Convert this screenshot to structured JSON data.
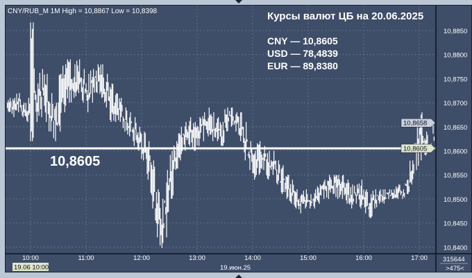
{
  "header": "CNY/RUB_M 1M High = 10,8867 Low = 10,8398",
  "overlay": {
    "title": "Курсы валют ЦБ на 20.06.2025",
    "rates": [
      "CNY — 10,8605",
      "USD — 78,4839",
      "EUR — 89,8380"
    ],
    "big_price": "10,8605"
  },
  "colors": {
    "background": "#3e4d68",
    "bars": "#ffffff",
    "grid": "#6a7a96",
    "price_tag": "#dfe6cc",
    "last_tag": "#c9d1dc"
  },
  "axis_footer": {
    "volume": "315644",
    "zoom": ">475<",
    "cursor_time": "19.06 10:00",
    "date": "19.июн.25"
  },
  "chart_data": {
    "type": "bar",
    "subtype": "minute high-low bars (aggregated to 5 min)",
    "symbol": "CNY/RUB_M",
    "timeframe": "1M",
    "high": 10.8867,
    "low": 10.8398,
    "ylim": [
      10.8385,
      10.8905
    ],
    "yticks": [
      "10,8400",
      "10,8450",
      "10,8500",
      "10,8550",
      "10,8600",
      "10,8650",
      "10,8700",
      "10,8750",
      "10,8800",
      "10,8850"
    ],
    "xticks": [
      "10:00",
      "11:00",
      "12:00",
      "13:00",
      "14:00",
      "15:00",
      "16:00",
      "17:00"
    ],
    "horizontal_line": 10.8605,
    "price_tags": [
      {
        "label": "10,8658",
        "value": 10.8658
      },
      {
        "label": "10,8605",
        "value": 10.8605
      }
    ],
    "grid": true,
    "start_time": "09:35",
    "bars_low_high": [
      [
        10.868,
        10.871
      ],
      [
        10.867,
        10.871
      ],
      [
        10.868,
        10.872
      ],
      [
        10.867,
        10.87
      ],
      [
        10.866,
        10.871
      ],
      [
        10.862,
        10.8867
      ],
      [
        10.866,
        10.874
      ],
      [
        10.867,
        10.877
      ],
      [
        10.866,
        10.876
      ],
      [
        10.864,
        10.872
      ],
      [
        10.862,
        10.87
      ],
      [
        10.864,
        10.876
      ],
      [
        10.868,
        10.878
      ],
      [
        10.87,
        10.879
      ],
      [
        10.871,
        10.878
      ],
      [
        10.872,
        10.879
      ],
      [
        10.87,
        10.877
      ],
      [
        10.868,
        10.876
      ],
      [
        10.87,
        10.877
      ],
      [
        10.872,
        10.878
      ],
      [
        10.871,
        10.878
      ],
      [
        10.869,
        10.876
      ],
      [
        10.866,
        10.874
      ],
      [
        10.866,
        10.872
      ],
      [
        10.866,
        10.871
      ],
      [
        10.864,
        10.869
      ],
      [
        10.863,
        10.868
      ],
      [
        10.861,
        10.867
      ],
      [
        10.86,
        10.865
      ],
      [
        10.858,
        10.864
      ],
      [
        10.854,
        10.862
      ],
      [
        10.848,
        10.858
      ],
      [
        10.842,
        10.852
      ],
      [
        10.8398,
        10.85
      ],
      [
        10.842,
        10.856
      ],
      [
        10.85,
        10.86
      ],
      [
        10.856,
        10.862
      ],
      [
        10.858,
        10.865
      ],
      [
        10.86,
        10.866
      ],
      [
        10.861,
        10.867
      ],
      [
        10.86,
        10.866
      ],
      [
        10.861,
        10.867
      ],
      [
        10.862,
        10.868
      ],
      [
        10.863,
        10.869
      ],
      [
        10.862,
        10.868
      ],
      [
        10.862,
        10.867
      ],
      [
        10.861,
        10.866
      ],
      [
        10.864,
        10.869
      ],
      [
        10.865,
        10.869
      ],
      [
        10.864,
        10.868
      ],
      [
        10.862,
        10.868
      ],
      [
        10.858,
        10.866
      ],
      [
        10.856,
        10.862
      ],
      [
        10.854,
        10.86
      ],
      [
        10.855,
        10.862
      ],
      [
        10.856,
        10.861
      ],
      [
        10.854,
        10.86
      ],
      [
        10.855,
        10.86
      ],
      [
        10.853,
        10.858
      ],
      [
        10.851,
        10.857
      ],
      [
        10.85,
        10.855
      ],
      [
        10.849,
        10.854
      ],
      [
        10.848,
        10.852
      ],
      [
        10.847,
        10.851
      ],
      [
        10.848,
        10.852
      ],
      [
        10.848,
        10.851
      ],
      [
        10.848,
        10.852
      ],
      [
        10.849,
        10.853
      ],
      [
        10.85,
        10.854
      ],
      [
        10.85,
        10.855
      ],
      [
        10.851,
        10.855
      ],
      [
        10.85,
        10.855
      ],
      [
        10.85,
        10.855
      ],
      [
        10.849,
        10.854
      ],
      [
        10.848,
        10.853
      ],
      [
        10.849,
        10.853
      ],
      [
        10.848,
        10.854
      ],
      [
        10.847,
        10.852
      ],
      [
        10.846,
        10.851
      ],
      [
        10.848,
        10.852
      ],
      [
        10.849,
        10.852
      ],
      [
        10.849,
        10.852
      ],
      [
        10.85,
        10.852
      ],
      [
        10.85,
        10.852
      ],
      [
        10.85,
        10.853
      ],
      [
        10.85,
        10.852
      ],
      [
        10.851,
        10.854
      ],
      [
        10.853,
        10.858
      ],
      [
        10.856,
        10.866
      ],
      [
        10.858,
        10.868
      ],
      [
        10.859,
        10.864
      ],
      [
        10.86,
        10.8615
      ],
      [
        10.8605,
        10.8658
      ]
    ]
  }
}
